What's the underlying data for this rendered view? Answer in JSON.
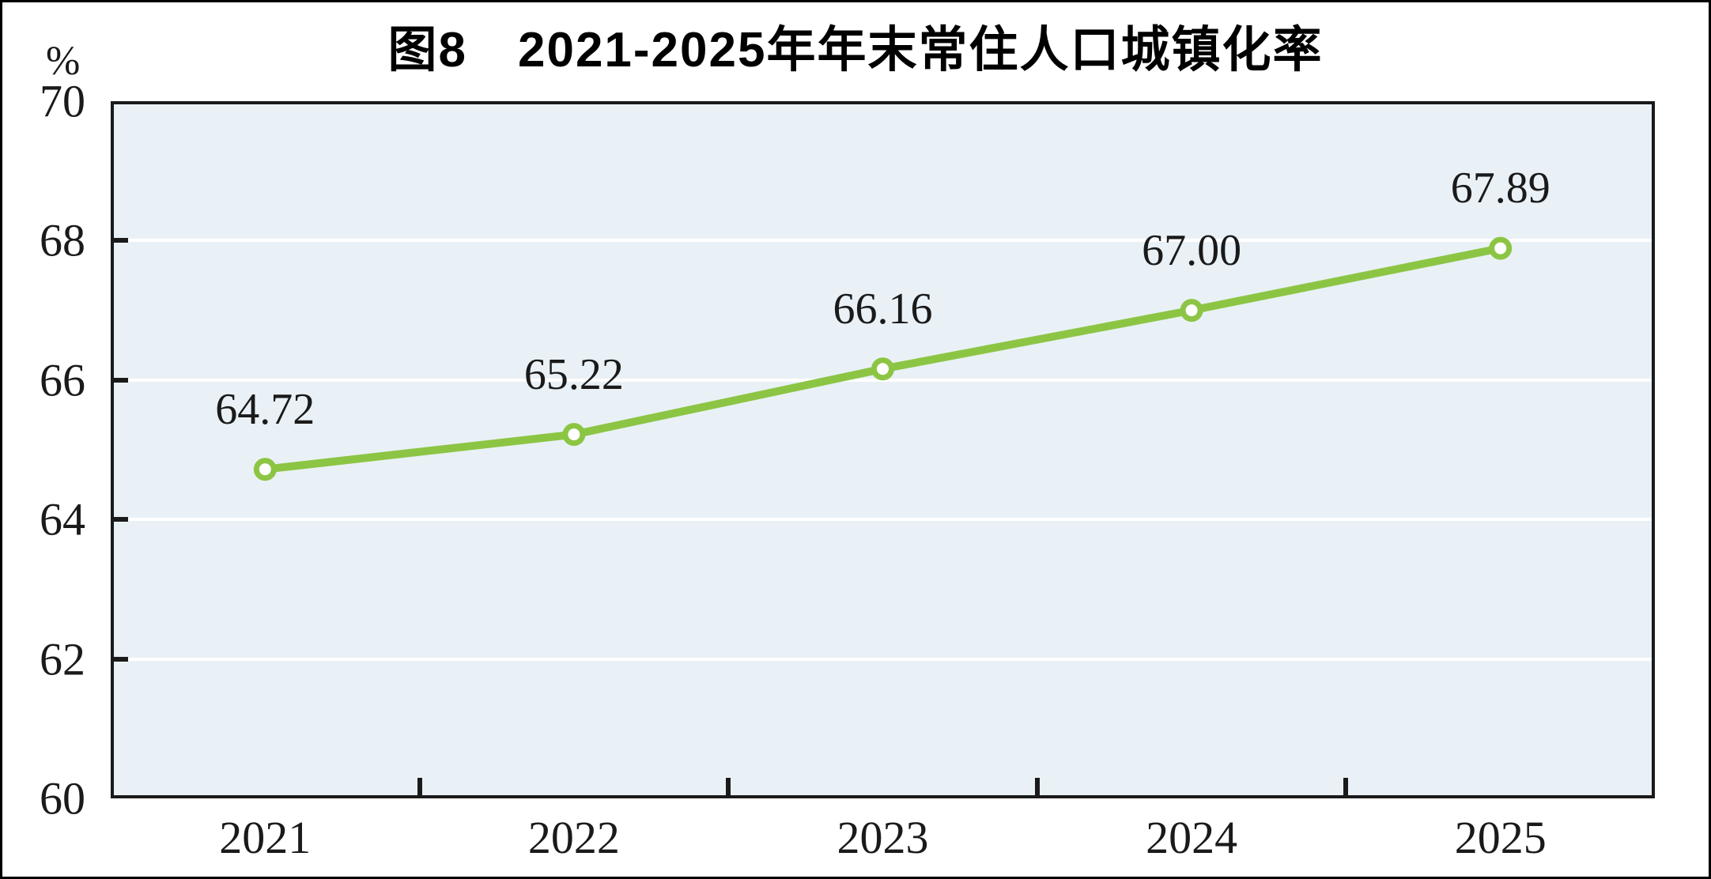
{
  "figure_number_and_title": "图8　2021-2025年年末常住人口城镇化率",
  "chart_data": {
    "type": "line",
    "title": "图8　2021-2025年年末常住人口城镇化率",
    "categories": [
      "2021",
      "2022",
      "2023",
      "2024",
      "2025"
    ],
    "values": [
      64.72,
      65.22,
      66.16,
      67.0,
      67.89
    ],
    "data_labels": [
      "64.72",
      "65.22",
      "66.16",
      "67.00",
      "67.89"
    ],
    "xlabel": "",
    "ylabel": "%",
    "ylim": [
      60,
      70
    ],
    "y_ticks": [
      60,
      62,
      64,
      66,
      68,
      70
    ],
    "grid": "horizontal-white-lines",
    "legend": "none",
    "marker": "white-filled-circle-green-ring",
    "colors": {
      "line": "#8CC544",
      "marker_fill": "#FFFFFF",
      "plot_background": "#E9F1F6",
      "gridline": "#FFFFFF",
      "axis": "#1A1A1A",
      "tick_text": "#1A1A1A",
      "title_text": "#000000",
      "page_background": "#FFFFFF",
      "outer_border": "#000000"
    }
  }
}
